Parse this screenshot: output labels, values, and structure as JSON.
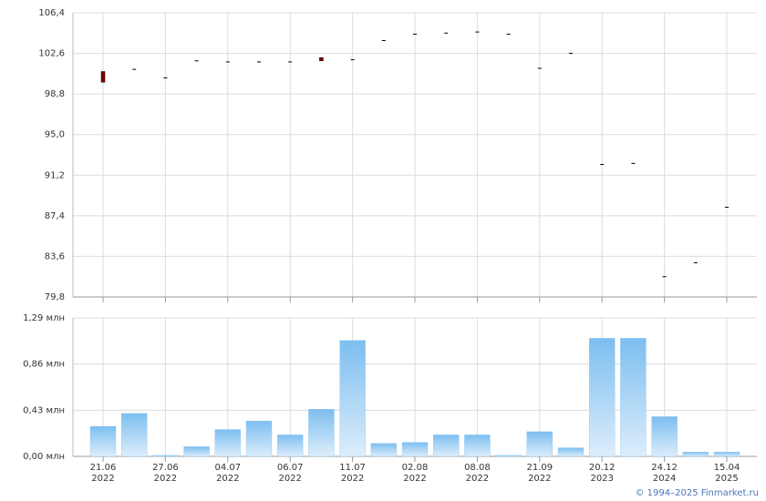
{
  "chart_data": [
    {
      "type": "candlestick",
      "open": [
        100.9,
        101.1,
        100.3,
        101.9,
        101.8,
        101.8,
        101.8,
        102.2,
        102.0,
        103.8,
        104.4,
        104.5,
        104.6,
        104.4,
        101.2,
        102.6,
        92.2,
        92.3,
        81.7,
        83.0,
        88.2
      ],
      "high": [
        100.9,
        101.1,
        100.3,
        101.9,
        101.8,
        101.8,
        101.8,
        102.2,
        102.0,
        103.8,
        104.4,
        104.5,
        104.6,
        104.4,
        101.2,
        102.6,
        92.2,
        92.3,
        81.7,
        83.0,
        88.2
      ],
      "low": [
        99.9,
        101.1,
        100.3,
        101.9,
        101.8,
        101.8,
        101.8,
        101.9,
        102.0,
        103.8,
        104.4,
        104.5,
        104.6,
        104.4,
        101.2,
        102.6,
        92.2,
        92.3,
        81.7,
        83.0,
        88.2
      ],
      "close": [
        99.9,
        101.1,
        100.3,
        101.9,
        101.8,
        101.8,
        101.8,
        101.9,
        102.0,
        103.8,
        104.4,
        104.5,
        104.6,
        104.4,
        101.2,
        102.6,
        92.2,
        92.3,
        81.7,
        83.0,
        88.2
      ],
      "color": "#800000",
      "ylim": [
        79.8,
        106.4
      ],
      "yticks": [
        {
          "value": 79.8,
          "label": "79,8"
        },
        {
          "value": 83.6,
          "label": "83,6"
        },
        {
          "value": 87.4,
          "label": "87,4"
        },
        {
          "value": 91.2,
          "label": "91,2"
        },
        {
          "value": 95.0,
          "label": "95,0"
        },
        {
          "value": 98.8,
          "label": "98,8"
        },
        {
          "value": 102.6,
          "label": "102,6"
        },
        {
          "value": 106.4,
          "label": "106,4"
        }
      ],
      "grid": true
    },
    {
      "type": "bar",
      "categories": [
        "21.06\n2022",
        null,
        "27.06\n2022",
        null,
        "04.07\n2022",
        null,
        "06.07\n2022",
        null,
        "11.07\n2022",
        null,
        "02.08\n2022",
        null,
        "08.08\n2022",
        null,
        "21.09\n2022",
        null,
        "20.12\n2023",
        null,
        "24.12\n2024",
        null,
        "15.04\n2025"
      ],
      "values": [
        0.28,
        0.4,
        0.01,
        0.09,
        0.25,
        0.33,
        0.2,
        0.44,
        1.08,
        0.12,
        0.13,
        0.2,
        0.2,
        0.01,
        0.23,
        0.08,
        1.1,
        1.1,
        0.37,
        0.04,
        0.04
      ],
      "color": "#7dbef0",
      "ylim": [
        0,
        1.29
      ],
      "yticks": [
        {
          "value": 0,
          "label": "0,00 млн"
        },
        {
          "value": 0.43,
          "label": "0,43 млн"
        },
        {
          "value": 0.86,
          "label": "0,86 млн"
        },
        {
          "value": 1.29,
          "label": "1,29 млн"
        }
      ],
      "grid": true
    }
  ],
  "credit": "© 1994–2025 Finmarket.ru"
}
